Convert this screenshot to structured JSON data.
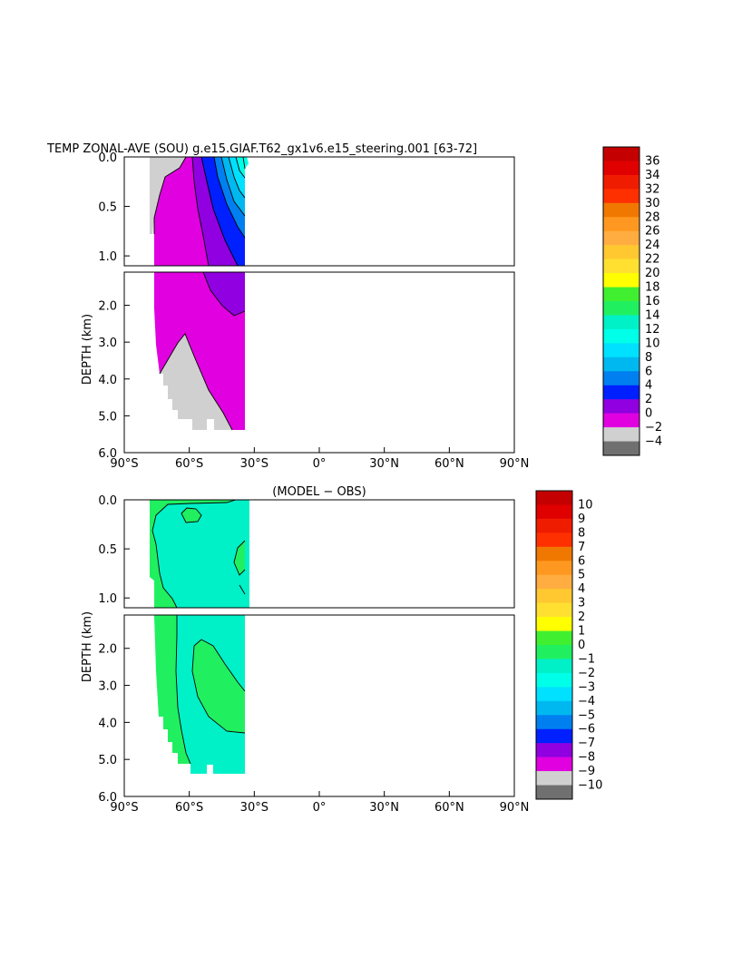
{
  "chart_data": [
    {
      "type": "heatmap",
      "title": "TEMP ZONAL-AVE (SOU) g.e15.GIAF.T62_gx1v6.e15_steering.001 [63-72]",
      "subtitle": "",
      "xlabel": "",
      "ylabel": "DEPTH (km)",
      "x_ticks": [
        "90°S",
        "60°S",
        "30°S",
        "0°",
        "30°N",
        "60°N",
        "90°N"
      ],
      "x_tick_values": [
        -90,
        -60,
        -30,
        0,
        30,
        60,
        90
      ],
      "y_ticks_upper": [
        "0.0",
        "0.5",
        "1.0"
      ],
      "y_tick_values_upper": [
        0.0,
        0.5,
        1.0
      ],
      "y_ticks_lower": [
        "2.0",
        "3.0",
        "4.0",
        "5.0",
        "6.0"
      ],
      "y_tick_values_lower": [
        2.0,
        3.0,
        4.0,
        5.0,
        6.0
      ],
      "xlim": [
        -90,
        90
      ],
      "ylim": [
        6.0,
        0.0
      ],
      "grid": false,
      "colorbar": {
        "labels": [
          "36",
          "34",
          "32",
          "30",
          "28",
          "26",
          "24",
          "22",
          "20",
          "18",
          "16",
          "14",
          "12",
          "10",
          "8",
          "6",
          "4",
          "2",
          "0",
          "−2",
          "−4"
        ],
        "colors": [
          "#c40000",
          "#e00000",
          "#f01c00",
          "#ff3000",
          "#f07800",
          "#ff9820",
          "#ffad40",
          "#ffc830",
          "#ffe030",
          "#ffff00",
          "#40f030",
          "#20f060",
          "#00f0c8",
          "#00ffe8",
          "#00e0ff",
          "#00b8f0",
          "#0080f0",
          "#0020ff",
          "#9000e0",
          "#e000e0",
          "#d0d0d0",
          "#707070"
        ]
      },
      "fields": [
        {
          "value_range": "0 to 2",
          "color": "#e000e0"
        },
        {
          "value_range": "2 to 4",
          "color": "#9000e0"
        },
        {
          "value_range": "4 to 6",
          "color": "#0020ff"
        },
        {
          "value_range": "-2 to 0",
          "color": "#d0d0d0"
        }
      ]
    },
    {
      "type": "heatmap",
      "title": "(MODEL − OBS)",
      "xlabel": "",
      "ylabel": "DEPTH (km)",
      "x_ticks": [
        "90°S",
        "60°S",
        "30°S",
        "0°",
        "30°N",
        "60°N",
        "90°N"
      ],
      "x_tick_values": [
        -90,
        -60,
        -30,
        0,
        30,
        60,
        90
      ],
      "y_ticks_upper": [
        "0.0",
        "0.5",
        "1.0"
      ],
      "y_tick_values_upper": [
        0.0,
        0.5,
        1.0
      ],
      "y_ticks_lower": [
        "2.0",
        "3.0",
        "4.0",
        "5.0",
        "6.0"
      ],
      "y_tick_values_lower": [
        2.0,
        3.0,
        4.0,
        5.0,
        6.0
      ],
      "xlim": [
        -90,
        90
      ],
      "ylim": [
        6.0,
        0.0
      ],
      "grid": false,
      "colorbar": {
        "labels": [
          "10",
          "9",
          "8",
          "7",
          "6",
          "5",
          "4",
          "3",
          "2",
          "1",
          "0",
          "−1",
          "−2",
          "−3",
          "−4",
          "−5",
          "−6",
          "−7",
          "−8",
          "−9",
          "−10"
        ],
        "colors": [
          "#c40000",
          "#e00000",
          "#f01c00",
          "#ff3000",
          "#f07800",
          "#ff9820",
          "#ffad40",
          "#ffc830",
          "#ffe030",
          "#ffff00",
          "#40f030",
          "#20f060",
          "#00f0c8",
          "#00ffe8",
          "#00e0ff",
          "#00b8f0",
          "#0080f0",
          "#0020ff",
          "#9000e0",
          "#e000e0",
          "#d0d0d0",
          "#707070"
        ]
      },
      "fields": [
        {
          "value_range": "-1 to 0",
          "color": "#00f0c8"
        },
        {
          "value_range": "0 to 1",
          "color": "#20f060"
        }
      ]
    }
  ]
}
